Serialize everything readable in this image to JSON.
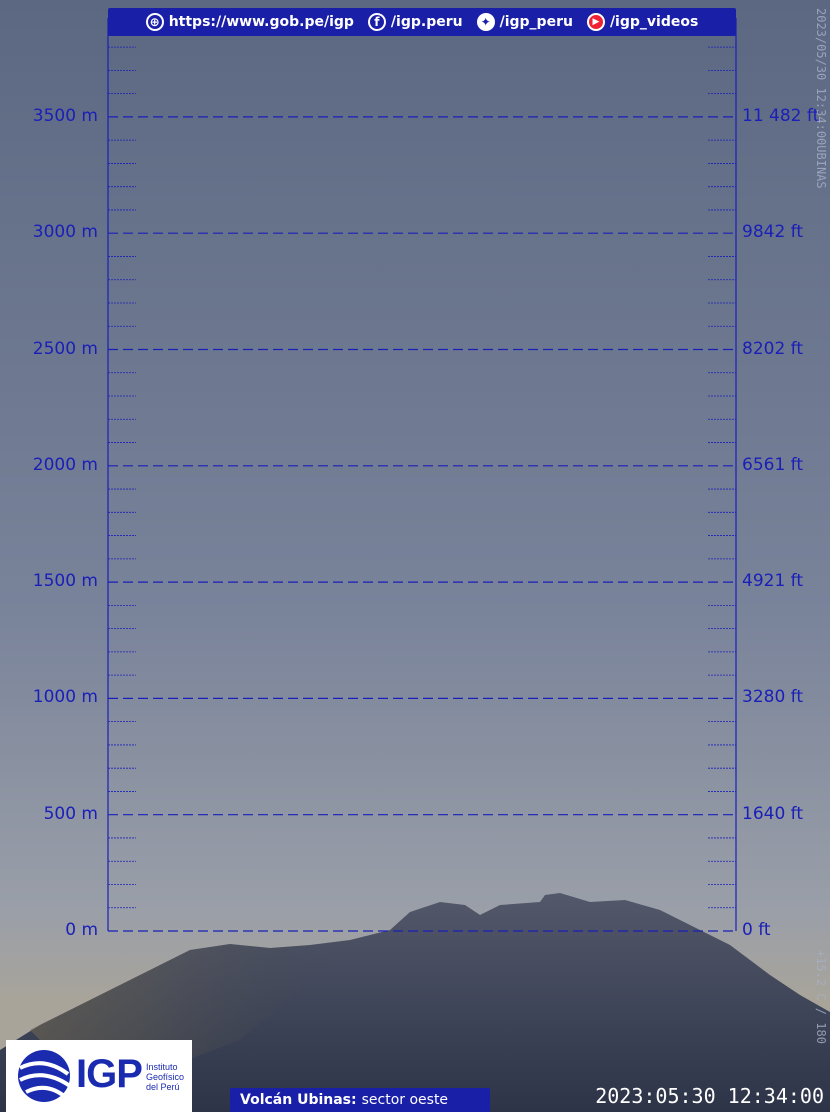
{
  "header": {
    "website": "https://www.gob.pe/igp",
    "facebook": "/igp.peru",
    "twitter": "/igp_peru",
    "youtube": "/igp_videos"
  },
  "scale": {
    "metric": [
      {
        "label": "3500 m",
        "value": 3500
      },
      {
        "label": "3000 m",
        "value": 3000
      },
      {
        "label": "2500 m",
        "value": 2500
      },
      {
        "label": "2000 m",
        "value": 2000
      },
      {
        "label": "1500 m",
        "value": 1500
      },
      {
        "label": "1000 m",
        "value": 1000
      },
      {
        "label": "500 m",
        "value": 500
      },
      {
        "label": "0 m",
        "value": 0
      }
    ],
    "imperial": [
      "11 482 ft",
      "9842 ft",
      "8202 ft",
      "6561 ft",
      "4921 ft",
      "3280 ft",
      "1640 ft",
      "0 ft"
    ]
  },
  "logo": {
    "acronym": "IGP",
    "line1": "Instituto",
    "line2": "Geofísico",
    "line3": "del Perú"
  },
  "caption": {
    "volcano": "Volcán Ubinas:",
    "sector": "sector oeste"
  },
  "timestamp": "2023:05:30 12:34:00",
  "side_stamp_top": "2023/05/30 12:34:00UBINAS",
  "side_stamp_bottom": "+15.2 C / 180",
  "colors": {
    "accent": "#1a1fa8",
    "grid": "#1a1fb8"
  },
  "icons": [
    "globe-icon",
    "facebook-icon",
    "twitter-icon",
    "youtube-icon"
  ]
}
